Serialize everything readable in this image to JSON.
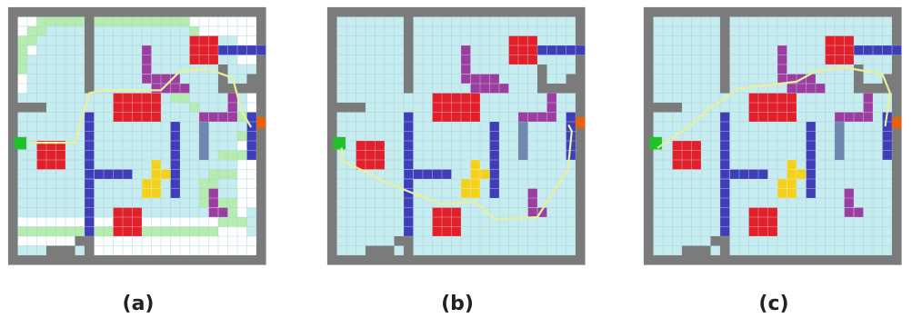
{
  "panels": [
    {
      "caption": "(a)",
      "shows_search_frontier": true,
      "path_variant": "a"
    },
    {
      "caption": "(b)",
      "shows_search_frontier": false,
      "path_variant": "b"
    },
    {
      "caption": "(c)",
      "shows_search_frontier": false,
      "path_variant": "c"
    }
  ],
  "legend_colors": {
    "wall": "#7b7b7b",
    "free": "#c6ecef",
    "unexplored": "#ffffff",
    "frontier": "#b7ecb0",
    "start": "#22c02a",
    "goal": "#e8620e",
    "obstacle_red": "#e0202a",
    "obstacle_blue": "#3e3eb8",
    "obstacle_purple": "#9a3fa0",
    "obstacle_slate": "#6f88b0",
    "obstacle_yellow": "#f2d21e",
    "path": "#e8f09a"
  }
}
